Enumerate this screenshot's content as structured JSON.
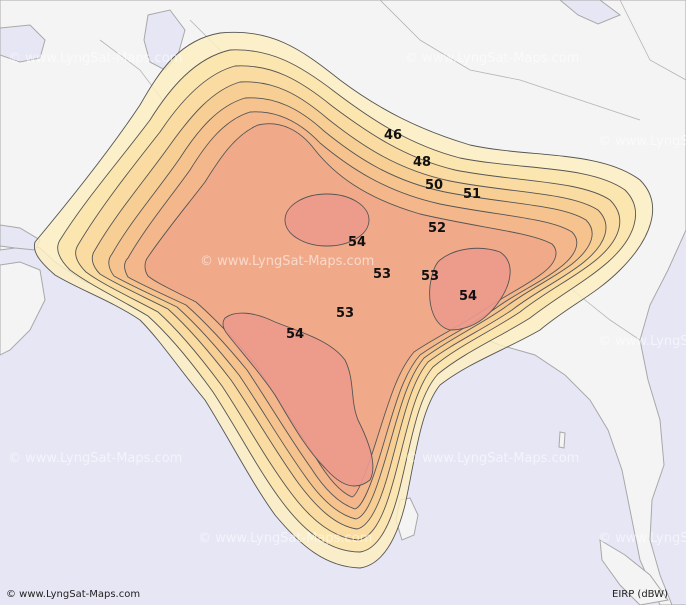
{
  "footer": {
    "copyright": "© www.LyngSat-Maps.com",
    "unit_label": "EIRP (dBW)"
  },
  "watermark": "© www.LyngSat-Maps.com",
  "colors": {
    "sea": "#e6e6f5",
    "land": "#f4f4f4",
    "border": "#a8a8a8",
    "contour_line": "#555555",
    "contours": [
      "#fcefc0",
      "#fbe3ab",
      "#f9d89d",
      "#f7cc93",
      "#f5bf8d",
      "#f2b58a",
      "#f0a789",
      "#ec9a8d"
    ]
  },
  "contours": [
    {
      "level": "46"
    },
    {
      "level": "48"
    },
    {
      "level": "50"
    },
    {
      "level": "51"
    },
    {
      "level": "52"
    },
    {
      "level": "53"
    },
    {
      "level": "54"
    }
  ],
  "labels": [
    {
      "key": "l46",
      "text": "46"
    },
    {
      "key": "l48",
      "text": "48"
    },
    {
      "key": "l50",
      "text": "50"
    },
    {
      "key": "l51",
      "text": "51"
    },
    {
      "key": "l52",
      "text": "52"
    },
    {
      "key": "l54a",
      "text": "54"
    },
    {
      "key": "l53a",
      "text": "53"
    },
    {
      "key": "l53b",
      "text": "53"
    },
    {
      "key": "l54b",
      "text": "54"
    },
    {
      "key": "l53c",
      "text": "53"
    },
    {
      "key": "l54c",
      "text": "54"
    }
  ]
}
